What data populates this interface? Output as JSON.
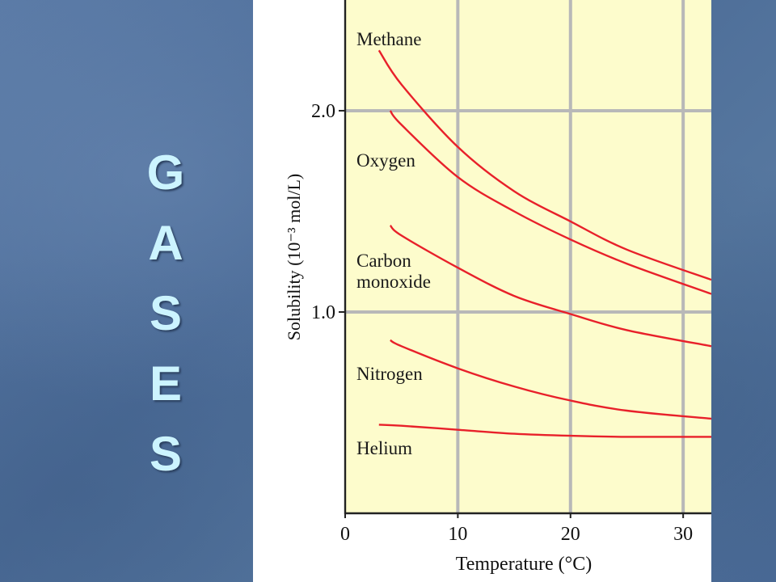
{
  "slide": {
    "side_title_letters": [
      "G",
      "A",
      "S",
      "E",
      "S"
    ],
    "colors": {
      "background": "#4f709c",
      "side_title": "#ccf4ff",
      "plot_background": "#fdfccc",
      "grid": "#b8b8b8",
      "curve": "#e8202a"
    }
  },
  "chart_data": {
    "type": "line",
    "title": "",
    "xlabel": "Temperature (°C)",
    "ylabel": "Solubility (10⁻³ mol/L)",
    "xlim": [
      0,
      32.5
    ],
    "ylim": [
      0,
      2.55
    ],
    "x_ticks": [
      0,
      10,
      20,
      30
    ],
    "x_tick_labels": [
      "0",
      "10",
      "20",
      "30"
    ],
    "y_ticks": [
      1.0,
      2.0
    ],
    "y_tick_labels": [
      "1.0",
      "2.0"
    ],
    "grid": true,
    "legend": "inline labels",
    "series": [
      {
        "name": "Methane",
        "label_lines": [
          "Methane"
        ],
        "x": [
          3,
          5,
          10,
          15,
          20,
          25,
          32.5
        ],
        "y": [
          2.3,
          2.13,
          1.82,
          1.6,
          1.45,
          1.31,
          1.16
        ]
      },
      {
        "name": "Oxygen",
        "label_lines": [
          "Oxygen"
        ],
        "x": [
          4,
          5,
          10,
          15,
          20,
          25,
          32.5
        ],
        "y": [
          2.0,
          1.93,
          1.67,
          1.5,
          1.36,
          1.24,
          1.09
        ]
      },
      {
        "name": "Carbon monoxide",
        "label_lines": [
          "Carbon",
          "monoxide"
        ],
        "x": [
          4,
          5,
          10,
          15,
          20,
          25,
          32.5
        ],
        "y": [
          1.43,
          1.38,
          1.22,
          1.08,
          0.99,
          0.91,
          0.83
        ]
      },
      {
        "name": "Nitrogen",
        "label_lines": [
          "Nitrogen"
        ],
        "x": [
          4,
          5,
          10,
          15,
          20,
          25,
          32.5
        ],
        "y": [
          0.86,
          0.83,
          0.72,
          0.63,
          0.56,
          0.51,
          0.47
        ]
      },
      {
        "name": "Helium",
        "label_lines": [
          "Helium"
        ],
        "x": [
          3,
          5,
          10,
          15,
          20,
          25,
          32.5
        ],
        "y": [
          0.44,
          0.435,
          0.415,
          0.395,
          0.385,
          0.38,
          0.38
        ]
      }
    ]
  }
}
